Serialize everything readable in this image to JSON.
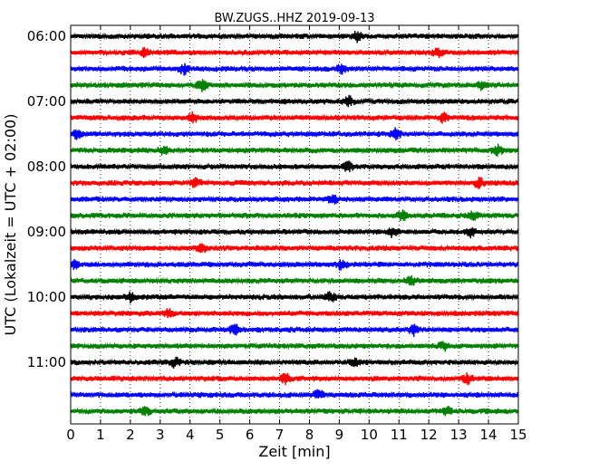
{
  "chart_data": {
    "type": "line",
    "title": "BW.ZUGS..HHZ 2019-09-13",
    "xlabel": "Zeit  [min]",
    "ylabel": "UTC (Lokalzeit = UTC + 02:00)",
    "xlim": [
      0,
      15
    ],
    "x_ticks": [
      "0",
      "1",
      "2",
      "3",
      "4",
      "5",
      "6",
      "7",
      "8",
      "9",
      "10",
      "11",
      "12",
      "13",
      "14",
      "15"
    ],
    "y_ticks": [
      "06:00",
      "07:00",
      "08:00",
      "09:00",
      "10:00",
      "11:00"
    ],
    "grid": "vertical dotted lines at each minute",
    "trace_colors": [
      "#000000",
      "#ff0000",
      "#0000ff",
      "#008000"
    ],
    "traces": [
      {
        "start": "06:00",
        "events": [
          9.6
        ]
      },
      {
        "start": "06:15",
        "events": [
          2.5,
          12.3
        ]
      },
      {
        "start": "06:30",
        "events": [
          3.8,
          9.1
        ]
      },
      {
        "start": "06:45",
        "events": [
          4.4,
          13.8
        ]
      },
      {
        "start": "07:00",
        "events": [
          9.3
        ]
      },
      {
        "start": "07:15",
        "events": [
          4.1,
          12.5
        ]
      },
      {
        "start": "07:30",
        "events": [
          0.2,
          10.9
        ]
      },
      {
        "start": "07:45",
        "events": [
          3.1,
          14.3
        ]
      },
      {
        "start": "08:00",
        "events": [
          9.3
        ]
      },
      {
        "start": "08:15",
        "events": [
          4.2,
          13.7
        ]
      },
      {
        "start": "08:30",
        "events": [
          8.8
        ]
      },
      {
        "start": "08:45",
        "events": [
          11.1,
          13.5
        ]
      },
      {
        "start": "09:00",
        "events": [
          10.8,
          13.4
        ]
      },
      {
        "start": "09:15",
        "events": [
          4.4
        ]
      },
      {
        "start": "09:30",
        "events": [
          0.1,
          9.1
        ]
      },
      {
        "start": "09:45",
        "events": [
          11.4
        ]
      },
      {
        "start": "10:00",
        "events": [
          2.0,
          8.7
        ]
      },
      {
        "start": "10:15",
        "events": [
          3.3
        ]
      },
      {
        "start": "10:30",
        "events": [
          5.5,
          11.5
        ]
      },
      {
        "start": "10:45",
        "events": [
          12.5
        ]
      },
      {
        "start": "11:00",
        "events": [
          3.5,
          9.5
        ]
      },
      {
        "start": "11:15",
        "events": [
          7.2,
          13.3
        ]
      },
      {
        "start": "11:30",
        "events": [
          8.3
        ]
      },
      {
        "start": "11:45",
        "events": [
          2.5,
          12.6
        ]
      }
    ]
  }
}
